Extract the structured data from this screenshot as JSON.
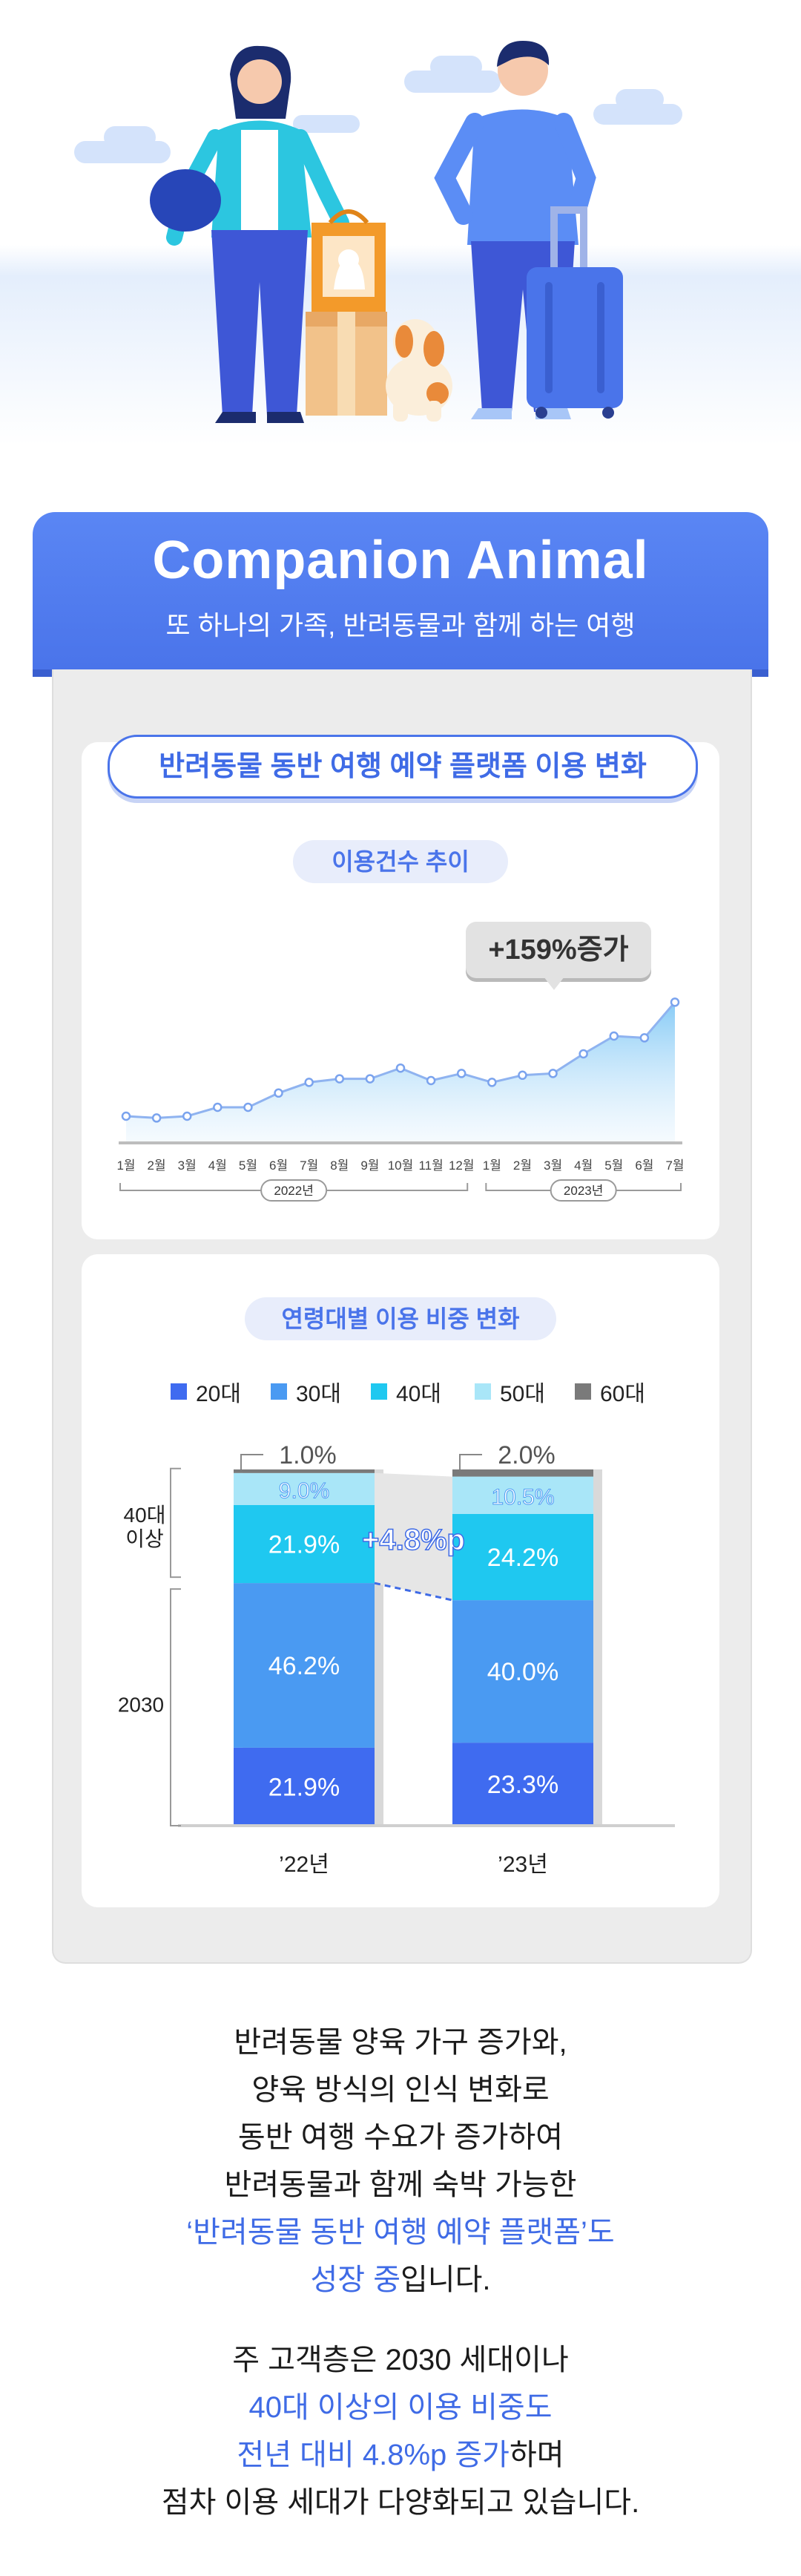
{
  "banner": {
    "title": "Companion Animal",
    "subtitle": "또 하나의 가족, 반려동물과 함께 하는 여행"
  },
  "section_title": "반려동물 동반 여행 예약 플랫폼 이용 변화",
  "colors": {
    "primary": "#4a74ea",
    "c20": "#3f6bf0",
    "c30": "#4a9af2",
    "c40": "#1fc8f0",
    "c50": "#a9e6f8",
    "c60": "#7a7a7a"
  },
  "chart_data": [
    {
      "type": "area",
      "title": "이용건수 추이",
      "annotation": "+159%증가",
      "x": [
        "1월",
        "2월",
        "3월",
        "4월",
        "5월",
        "6월",
        "7월",
        "8월",
        "9월",
        "10월",
        "11월",
        "12월",
        "1월",
        "2월",
        "3월",
        "4월",
        "5월",
        "6월",
        "7월"
      ],
      "year_groups": [
        {
          "label": "2022년",
          "months": 12
        },
        {
          "label": "2023년",
          "months": 7
        }
      ],
      "values": [
        15,
        14,
        15,
        20,
        20,
        28,
        34,
        36,
        36,
        42,
        35,
        39,
        34,
        38,
        39,
        50,
        60,
        59,
        79
      ],
      "note": "relative index; no y-axis shown",
      "ylim": [
        0,
        100
      ]
    },
    {
      "type": "bar",
      "stacked": true,
      "title": "연령대별 이용 비중 변화",
      "categories": [
        "’22년",
        "’23년"
      ],
      "series": [
        {
          "name": "20대",
          "values": [
            21.9,
            23.3
          ]
        },
        {
          "name": "30대",
          "values": [
            46.2,
            40.0
          ]
        },
        {
          "name": "40대",
          "values": [
            21.9,
            24.2
          ]
        },
        {
          "name": "50대",
          "values": [
            9.0,
            10.5
          ]
        },
        {
          "name": "60대",
          "values": [
            1.0,
            2.0
          ]
        }
      ],
      "value_labels": {
        "20대": [
          "21.9%",
          "23.3%"
        ],
        "30대": [
          "46.2%",
          "40.0%"
        ],
        "40대": [
          "21.9%",
          "24.2%"
        ],
        "50대": [
          "9.0%",
          "10.5%"
        ],
        "60대": [
          "1.0%",
          "2.0%"
        ]
      },
      "groups": [
        {
          "label": "40대\n이상"
        },
        {
          "label": "2030"
        }
      ],
      "change_label": "+4.8%p",
      "ylim": [
        0,
        100
      ]
    }
  ],
  "paragraph1": {
    "l1": "반려동물 양육 가구 증가와,",
    "l2": "양육 방식의 인식 변화로",
    "l3": "동반 여행 수요가 증가하여",
    "l4": "반려동물과 함께 숙박 가능한",
    "l5": "‘반려동물 동반 여행 예약 플랫폼’도",
    "l6a": "성장 중",
    "l6b": "입니다."
  },
  "paragraph2": {
    "l1": "주 고객층은 2030 세대이나",
    "l2": "40대 이상의 이용 비중도",
    "l3a": "전년 대비 4.8%p 증가",
    "l3b": "하며",
    "l4": "점차 이용 세대가 다양화되고 있습니다."
  }
}
